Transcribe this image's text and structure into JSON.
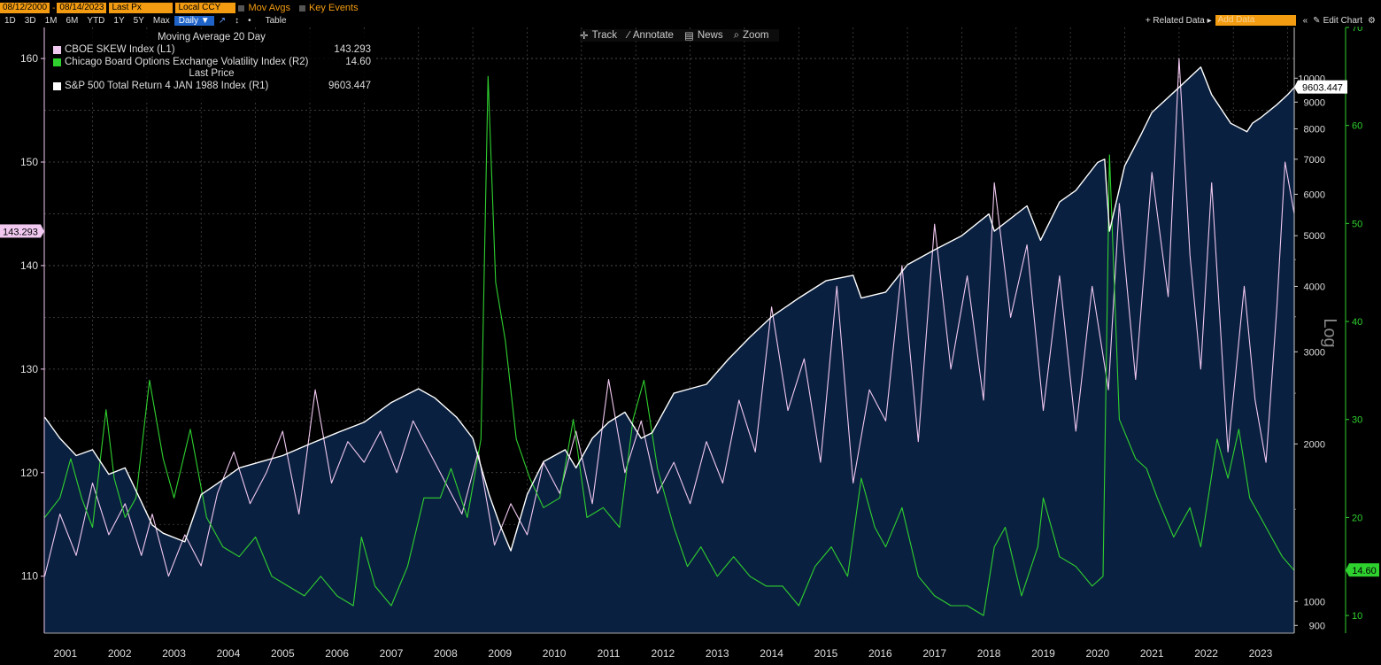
{
  "toolbar": {
    "date_start": "08/12/2000",
    "date_end": "08/14/2023",
    "price_field": "Last Px",
    "currency": "Local CCY",
    "mov_avgs": "Mov Avgs",
    "key_events": "Key Events",
    "periods": [
      "1D",
      "3D",
      "1M",
      "6M",
      "YTD",
      "1Y",
      "5Y",
      "Max"
    ],
    "frequency": "Daily ▼",
    "table": "Table",
    "related_data": "+ Related Data ▸",
    "add_data_placeholder": "Add Data",
    "edit_chart": "Edit Chart"
  },
  "chart_tools": {
    "track": "Track",
    "annotate": "Annotate",
    "news": "News",
    "zoom": "Zoom"
  },
  "legend": {
    "header_ma": "Moving Average 20 Day",
    "header_last": "Last Price"
  },
  "chart_data": {
    "type": "line",
    "x_axis": {
      "labels": [
        "2001",
        "2002",
        "2003",
        "2004",
        "2005",
        "2006",
        "2007",
        "2008",
        "2009",
        "2010",
        "2011",
        "2012",
        "2013",
        "2014",
        "2015",
        "2016",
        "2017",
        "2018",
        "2019",
        "2020",
        "2021",
        "2022",
        "2023"
      ],
      "range": [
        "08/12/2000",
        "08/14/2023"
      ]
    },
    "axes": {
      "L1": {
        "ticks": [
          110,
          120,
          130,
          140,
          150,
          160
        ],
        "range": [
          104.5,
          163
        ]
      },
      "R1": {
        "scale": "log",
        "ticks": [
          900,
          1000,
          2000,
          3000,
          4000,
          5000,
          6000,
          7000,
          8000,
          9000,
          10000
        ],
        "range": [
          870,
          12500
        ],
        "label": "Log"
      },
      "R2": {
        "ticks": [
          10,
          20,
          30,
          40,
          50,
          60,
          70
        ],
        "range": [
          8.2,
          70
        ]
      }
    },
    "series": [
      {
        "name": "CBOE SKEW Index  (L1)",
        "axis": "L1",
        "color": "#f0c8f0",
        "last": "143.293",
        "x": [
          2000.62,
          2000.9,
          2001.2,
          2001.5,
          2001.8,
          2002.1,
          2002.4,
          2002.6,
          2002.9,
          2003.2,
          2003.5,
          2003.8,
          2004.1,
          2004.4,
          2004.7,
          2005.0,
          2005.3,
          2005.6,
          2005.9,
          2006.2,
          2006.5,
          2006.8,
          2007.1,
          2007.4,
          2007.7,
          2008.0,
          2008.3,
          2008.6,
          2008.9,
          2009.2,
          2009.5,
          2009.8,
          2010.1,
          2010.4,
          2010.7,
          2011.0,
          2011.3,
          2011.6,
          2011.9,
          2012.2,
          2012.5,
          2012.8,
          2013.1,
          2013.4,
          2013.7,
          2014.0,
          2014.3,
          2014.6,
          2014.9,
          2015.2,
          2015.5,
          2015.8,
          2016.1,
          2016.4,
          2016.7,
          2017.0,
          2017.3,
          2017.6,
          2017.9,
          2018.1,
          2018.4,
          2018.7,
          2019.0,
          2019.3,
          2019.6,
          2019.9,
          2020.2,
          2020.4,
          2020.7,
          2021.0,
          2021.3,
          2021.5,
          2021.7,
          2021.9,
          2022.1,
          2022.4,
          2022.7,
          2022.9,
          2023.1,
          2023.3,
          2023.45,
          2023.62
        ],
        "y": [
          110,
          116,
          112,
          119,
          114,
          117,
          112,
          116,
          110,
          114,
          111,
          118,
          122,
          117,
          120,
          124,
          116,
          128,
          119,
          123,
          121,
          124,
          120,
          125,
          122,
          119,
          116,
          122,
          113,
          117,
          114,
          121,
          118,
          124,
          117,
          129,
          120,
          125,
          118,
          121,
          117,
          123,
          119,
          127,
          122,
          136,
          126,
          131,
          121,
          138,
          119,
          128,
          125,
          140,
          123,
          144,
          130,
          139,
          127,
          148,
          135,
          142,
          126,
          139,
          124,
          138,
          128,
          146,
          129,
          149,
          137,
          160,
          141,
          130,
          148,
          122,
          138,
          127,
          121,
          136,
          150,
          145
        ]
      },
      {
        "name": "Chicago Board Options Exchange Volatility Index  (R2)",
        "axis": "R2",
        "color": "#2fd12f",
        "last": "14.60",
        "x": [
          2000.62,
          2000.9,
          2001.1,
          2001.3,
          2001.5,
          2001.75,
          2001.9,
          2002.1,
          2002.3,
          2002.55,
          2002.8,
          2003.0,
          2003.3,
          2003.6,
          2003.9,
          2004.2,
          2004.5,
          2004.8,
          2005.1,
          2005.4,
          2005.7,
          2006.0,
          2006.3,
          2006.45,
          2006.7,
          2007.0,
          2007.3,
          2007.6,
          2007.9,
          2008.1,
          2008.4,
          2008.65,
          2008.78,
          2008.92,
          2009.1,
          2009.3,
          2009.55,
          2009.8,
          2010.1,
          2010.35,
          2010.6,
          2010.9,
          2011.2,
          2011.45,
          2011.65,
          2011.9,
          2012.2,
          2012.45,
          2012.7,
          2013.0,
          2013.3,
          2013.6,
          2013.9,
          2014.2,
          2014.5,
          2014.8,
          2015.1,
          2015.4,
          2015.65,
          2015.9,
          2016.1,
          2016.4,
          2016.7,
          2017.0,
          2017.3,
          2017.6,
          2017.9,
          2018.1,
          2018.3,
          2018.6,
          2018.9,
          2019.0,
          2019.3,
          2019.6,
          2019.9,
          2020.1,
          2020.22,
          2020.4,
          2020.7,
          2020.9,
          2021.1,
          2021.4,
          2021.7,
          2021.9,
          2022.2,
          2022.4,
          2022.6,
          2022.8,
          2023.0,
          2023.2,
          2023.4,
          2023.62
        ],
        "y": [
          20,
          22,
          26,
          22,
          19,
          31,
          24,
          20,
          22,
          34,
          26,
          22,
          29,
          20,
          17,
          16,
          18,
          14,
          13,
          12,
          14,
          12,
          11,
          18,
          13,
          11,
          15,
          22,
          22,
          25,
          20,
          28,
          65,
          44,
          38,
          28,
          24,
          21,
          22,
          30,
          20,
          21,
          19,
          30,
          34,
          25,
          19,
          15,
          17,
          14,
          16,
          14,
          13,
          13,
          11,
          15,
          17,
          14,
          24,
          19,
          17,
          21,
          14,
          12,
          11,
          11,
          10,
          17,
          19,
          12,
          17,
          22,
          16,
          15,
          13,
          14,
          57,
          30,
          26,
          25,
          22,
          18,
          21,
          17,
          28,
          24,
          29,
          22,
          20,
          18,
          16,
          14.6
        ]
      },
      {
        "name": "S&P 500 Total Return 4 JAN 1988 Index  (R1)",
        "axis": "R1",
        "color": "#ffffff",
        "last": "9603.447",
        "fill": "#0a2040",
        "x": [
          2000.62,
          2000.9,
          2001.2,
          2001.5,
          2001.8,
          2002.1,
          2002.4,
          2002.6,
          2002.8,
          2003.2,
          2003.5,
          2003.8,
          2004.2,
          2004.6,
          2005.0,
          2005.5,
          2006.0,
          2006.5,
          2007.0,
          2007.5,
          2007.8,
          2008.2,
          2008.5,
          2008.8,
          2009.0,
          2009.2,
          2009.5,
          2009.8,
          2010.2,
          2010.4,
          2010.7,
          2011.0,
          2011.3,
          2011.6,
          2011.8,
          2012.2,
          2012.5,
          2012.8,
          2013.2,
          2013.6,
          2014.0,
          2014.5,
          2015.0,
          2015.5,
          2015.65,
          2016.1,
          2016.5,
          2017.0,
          2017.5,
          2018.0,
          2018.1,
          2018.7,
          2018.95,
          2019.3,
          2019.6,
          2020.0,
          2020.13,
          2020.22,
          2020.5,
          2020.8,
          2021.0,
          2021.5,
          2021.9,
          2022.1,
          2022.45,
          2022.75,
          2022.85,
          2023.0,
          2023.3,
          2023.5,
          2023.62
        ],
        "y": [
          2250,
          2050,
          1900,
          1950,
          1750,
          1800,
          1550,
          1400,
          1350,
          1300,
          1600,
          1680,
          1800,
          1850,
          1900,
          2000,
          2100,
          2200,
          2400,
          2550,
          2450,
          2250,
          2050,
          1600,
          1400,
          1250,
          1600,
          1850,
          1950,
          1800,
          2050,
          2200,
          2300,
          2050,
          2100,
          2500,
          2550,
          2600,
          2900,
          3200,
          3500,
          3800,
          4100,
          4200,
          3800,
          3900,
          4400,
          4700,
          5000,
          5500,
          5100,
          5700,
          4900,
          5800,
          6100,
          6900,
          7000,
          5100,
          6800,
          7800,
          8600,
          9600,
          10500,
          9300,
          8200,
          7900,
          8200,
          8400,
          8900,
          9300,
          9603.447
        ]
      }
    ]
  }
}
